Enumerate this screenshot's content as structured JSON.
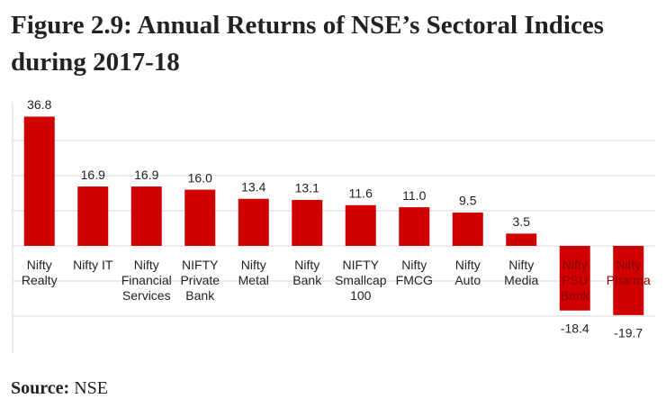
{
  "chart_data": {
    "type": "bar",
    "title": "Figure 2.9: Annual Returns of NSE’s Sectoral Indices during 2017-18",
    "categories": [
      "Nifty\nRealty",
      "Nifty IT",
      "Nifty\nFinancial\nServices",
      "NIFTY\nPrivate\nBank",
      "Nifty\nMetal",
      "Nifty\nBank",
      "NIFTY\nSmallcap\n100",
      "Nifty\nFMCG",
      "Nifty\nAuto",
      "Nifty\nMedia",
      "Nifty\nPSU\nBank",
      "Nifty\nPharma"
    ],
    "values": [
      36.8,
      16.9,
      16.9,
      16.0,
      13.4,
      13.1,
      11.6,
      11.0,
      9.5,
      3.5,
      -18.4,
      -19.7
    ],
    "value_labels": [
      "36.8",
      "16.9",
      "16.9",
      "16.0",
      "13.4",
      "13.1",
      "11.6",
      "11.0",
      "9.5",
      "3.5",
      "-18.4",
      "-19.7"
    ],
    "color": "#d00000",
    "ylim": [
      -30,
      40
    ],
    "yticks": [
      -20,
      -10,
      0,
      10,
      20,
      30
    ],
    "grid": true
  },
  "source": {
    "label": "Source:",
    "text": "NSE"
  }
}
